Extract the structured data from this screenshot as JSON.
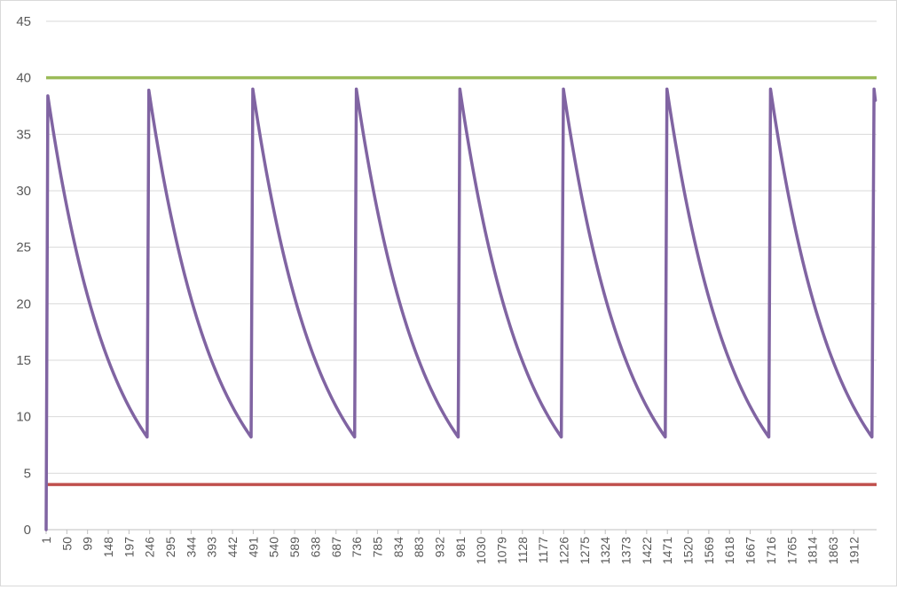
{
  "chart_data": {
    "type": "line",
    "title": "",
    "xlabel": "",
    "ylabel": "",
    "ylim": [
      0,
      45
    ],
    "y_ticks": [
      0,
      5,
      10,
      15,
      20,
      25,
      30,
      35,
      40,
      45
    ],
    "x_range": [
      1,
      1932
    ],
    "x_tick_labels": [
      "1",
      "50",
      "99",
      "148",
      "197",
      "246",
      "295",
      "344",
      "393",
      "442",
      "491",
      "540",
      "589",
      "638",
      "687",
      "736",
      "785",
      "834",
      "883",
      "932",
      "981",
      "1030",
      "1079",
      "1128",
      "1177",
      "1226",
      "1275",
      "1324",
      "1373",
      "1422",
      "1471",
      "1520",
      "1569",
      "1618",
      "1667",
      "1716",
      "1765",
      "1814",
      "1863",
      "1912"
    ],
    "grid": true,
    "legend": "none",
    "series": [
      {
        "color": "#8064a2",
        "kind": "sawtooth",
        "start": [
          1,
          0
        ],
        "cycles": [
          {
            "peak_x": 5,
            "peak_y": 38.4,
            "trough_x": 240,
            "trough_y": 8.2
          },
          {
            "peak_x": 244,
            "peak_y": 38.9,
            "trough_x": 486,
            "trough_y": 8.2
          },
          {
            "peak_x": 490,
            "peak_y": 39.0,
            "trough_x": 731,
            "trough_y": 8.2
          },
          {
            "peak_x": 735,
            "peak_y": 39.0,
            "trough_x": 976,
            "trough_y": 8.2
          },
          {
            "peak_x": 980,
            "peak_y": 39.0,
            "trough_x": 1220,
            "trough_y": 8.2
          },
          {
            "peak_x": 1225,
            "peak_y": 39.0,
            "trough_x": 1466,
            "trough_y": 8.2
          },
          {
            "peak_x": 1470,
            "peak_y": 39.0,
            "trough_x": 1711,
            "trough_y": 8.2
          },
          {
            "peak_x": 1715,
            "peak_y": 39.0,
            "trough_x": 1955,
            "trough_y": 8.2
          }
        ],
        "last_rise": {
          "peak_x": 1960,
          "peak_y": 39.0,
          "end_x": 1963,
          "end_y": 38.0
        }
      },
      {
        "color": "#9bbb59",
        "kind": "constant",
        "value": 40
      },
      {
        "color": "#c0504d",
        "kind": "constant",
        "value": 4
      }
    ]
  }
}
